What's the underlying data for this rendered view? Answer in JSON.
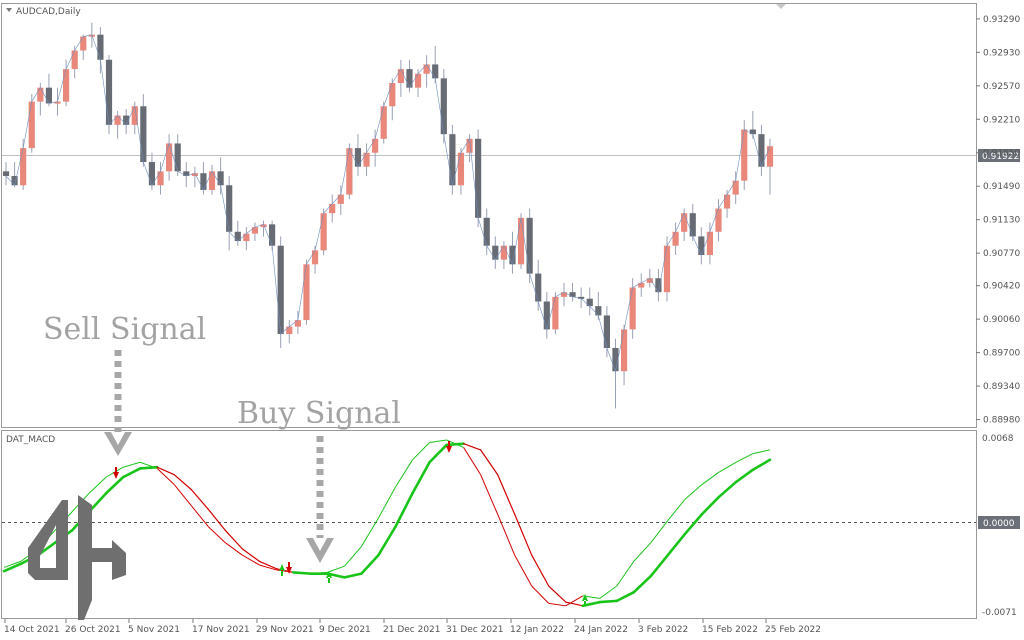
{
  "chart_window": {
    "title": "AUDCAD,Daily",
    "current_price": "0.91922",
    "price_axis_labels": [
      "0.93290",
      "0.92930",
      "0.92570",
      "0.92210",
      "0.91850",
      "0.91490",
      "0.91130",
      "0.90770",
      "0.90420",
      "0.90060",
      "0.89700",
      "0.89340",
      "0.88980"
    ],
    "date_labels": [
      "14 Oct 2021",
      "26 Oct 2021",
      "5 Nov 2021",
      "17 Nov 2021",
      "29 Nov 2021",
      "9 Dec 2021",
      "21 Dec 2021",
      "31 Dec 2021",
      "12 Jan 2022",
      "24 Jan 2022",
      "3 Feb 2022",
      "15 Feb 2022",
      "25 Feb 2022"
    ]
  },
  "indicator": {
    "name": "DAT_MACD",
    "axis_labels": {
      "top": "0.0068",
      "zero": "0.0000",
      "bottom": "-0.0071"
    }
  },
  "annotations": {
    "sell": "Sell Signal",
    "buy": "Buy Signal"
  },
  "colors": {
    "bull": "#e8877a",
    "bear": "#676b73",
    "macd_signal_up": "#19c419",
    "macd_signal_down": "#d40000",
    "arrow_gray": "#a7a7a7"
  },
  "chart_data": [
    {
      "type": "candlestick",
      "title": "AUDCAD,Daily",
      "ylim": [
        0.889,
        0.9345
      ],
      "series": [
        {
          "name": "AUDCAD",
          "ohlc": [
            [
              0.9165,
              0.9175,
              0.915,
              0.916
            ],
            [
              0.916,
              0.9175,
              0.9148,
              0.915
            ],
            [
              0.915,
              0.92,
              0.9145,
              0.919
            ],
            [
              0.919,
              0.9248,
              0.9185,
              0.924
            ],
            [
              0.924,
              0.926,
              0.9225,
              0.9255
            ],
            [
              0.9255,
              0.927,
              0.9235,
              0.9238
            ],
            [
              0.9238,
              0.9255,
              0.9225,
              0.924
            ],
            [
              0.924,
              0.9285,
              0.9235,
              0.9275
            ],
            [
              0.9275,
              0.93,
              0.9265,
              0.9295
            ],
            [
              0.9295,
              0.9312,
              0.9285,
              0.931
            ],
            [
              0.931,
              0.9325,
              0.9298,
              0.9312
            ],
            [
              0.9312,
              0.932,
              0.927,
              0.9285
            ],
            [
              0.9285,
              0.929,
              0.9205,
              0.9215
            ],
            [
              0.9215,
              0.923,
              0.92,
              0.9225
            ],
            [
              0.9225,
              0.9232,
              0.9205,
              0.9215
            ],
            [
              0.9215,
              0.924,
              0.9205,
              0.9235
            ],
            [
              0.9235,
              0.9248,
              0.917,
              0.9175
            ],
            [
              0.9175,
              0.9185,
              0.9145,
              0.915
            ],
            [
              0.915,
              0.9175,
              0.914,
              0.9165
            ],
            [
              0.9165,
              0.9205,
              0.9155,
              0.9195
            ],
            [
              0.9195,
              0.9205,
              0.916,
              0.9165
            ],
            [
              0.9165,
              0.9175,
              0.9148,
              0.916
            ],
            [
              0.916,
              0.917,
              0.9148,
              0.9163
            ],
            [
              0.9163,
              0.9175,
              0.914,
              0.9145
            ],
            [
              0.9145,
              0.9172,
              0.914,
              0.9165
            ],
            [
              0.9165,
              0.918,
              0.914,
              0.915
            ],
            [
              0.915,
              0.916,
              0.908,
              0.91
            ],
            [
              0.91,
              0.9112,
              0.9085,
              0.909
            ],
            [
              0.909,
              0.9105,
              0.908,
              0.9098
            ],
            [
              0.9098,
              0.911,
              0.909,
              0.9105
            ],
            [
              0.9105,
              0.9112,
              0.9095,
              0.9108
            ],
            [
              0.9108,
              0.9112,
              0.908,
              0.9085
            ],
            [
              0.9085,
              0.9095,
              0.8975,
              0.899
            ],
            [
              0.899,
              0.9005,
              0.898,
              0.8998
            ],
            [
              0.8998,
              0.9015,
              0.899,
              0.9005
            ],
            [
              0.9005,
              0.907,
              0.9,
              0.9065
            ],
            [
              0.9065,
              0.9085,
              0.9055,
              0.908
            ],
            [
              0.908,
              0.9125,
              0.9075,
              0.912
            ],
            [
              0.912,
              0.914,
              0.911,
              0.913
            ],
            [
              0.913,
              0.915,
              0.9118,
              0.914
            ],
            [
              0.914,
              0.9195,
              0.9135,
              0.919
            ],
            [
              0.919,
              0.9205,
              0.916,
              0.917
            ],
            [
              0.917,
              0.9195,
              0.916,
              0.9185
            ],
            [
              0.9185,
              0.921,
              0.917,
              0.92
            ],
            [
              0.92,
              0.924,
              0.9195,
              0.9235
            ],
            [
              0.9235,
              0.9265,
              0.922,
              0.926
            ],
            [
              0.926,
              0.9285,
              0.9245,
              0.9275
            ],
            [
              0.9275,
              0.9285,
              0.925,
              0.9255
            ],
            [
              0.9255,
              0.9275,
              0.9245,
              0.927
            ],
            [
              0.927,
              0.929,
              0.9255,
              0.928
            ],
            [
              0.928,
              0.93,
              0.926,
              0.9265
            ],
            [
              0.9265,
              0.9275,
              0.9195,
              0.9205
            ],
            [
              0.9205,
              0.9215,
              0.914,
              0.915
            ],
            [
              0.915,
              0.919,
              0.914,
              0.9185
            ],
            [
              0.9185,
              0.9205,
              0.9175,
              0.92
            ],
            [
              0.92,
              0.921,
              0.9105,
              0.9115
            ],
            [
              0.9115,
              0.9125,
              0.9075,
              0.9085
            ],
            [
              0.9085,
              0.9095,
              0.906,
              0.907
            ],
            [
              0.907,
              0.909,
              0.906,
              0.9085
            ],
            [
              0.9085,
              0.91,
              0.9055,
              0.9065
            ],
            [
              0.9065,
              0.912,
              0.906,
              0.9115
            ],
            [
              0.9115,
              0.9125,
              0.9045,
              0.9055
            ],
            [
              0.9055,
              0.907,
              0.9015,
              0.9025
            ],
            [
              0.9025,
              0.9035,
              0.8985,
              0.8995
            ],
            [
              0.8995,
              0.9035,
              0.899,
              0.903
            ],
            [
              0.903,
              0.9045,
              0.902,
              0.9035
            ],
            [
              0.9035,
              0.9045,
              0.9025,
              0.903
            ],
            [
              0.903,
              0.904,
              0.9018,
              0.9028
            ],
            [
              0.9028,
              0.904,
              0.901,
              0.902
            ],
            [
              0.902,
              0.9035,
              0.9005,
              0.901
            ],
            [
              0.901,
              0.902,
              0.8965,
              0.8975
            ],
            [
              0.8975,
              0.8985,
              0.891,
              0.895
            ],
            [
              0.895,
              0.9,
              0.8935,
              0.8995
            ],
            [
              0.8995,
              0.905,
              0.8985,
              0.904
            ],
            [
              0.904,
              0.9055,
              0.903,
              0.9045
            ],
            [
              0.9045,
              0.906,
              0.904,
              0.905
            ],
            [
              0.905,
              0.906,
              0.9025,
              0.9035
            ],
            [
              0.9035,
              0.9095,
              0.9025,
              0.9085
            ],
            [
              0.9085,
              0.911,
              0.9075,
              0.91
            ],
            [
              0.91,
              0.9125,
              0.909,
              0.912
            ],
            [
              0.912,
              0.913,
              0.909,
              0.9095
            ],
            [
              0.9095,
              0.9105,
              0.9065,
              0.9075
            ],
            [
              0.9075,
              0.911,
              0.9065,
              0.91
            ],
            [
              0.91,
              0.9135,
              0.909,
              0.9125
            ],
            [
              0.9125,
              0.9145,
              0.9115,
              0.914
            ],
            [
              0.914,
              0.9165,
              0.913,
              0.9155
            ],
            [
              0.9155,
              0.922,
              0.9145,
              0.921
            ],
            [
              0.921,
              0.923,
              0.92,
              0.9205
            ],
            [
              0.9205,
              0.9215,
              0.916,
              0.917
            ],
            [
              0.917,
              0.92,
              0.914,
              0.9192
            ]
          ]
        }
      ],
      "xlabels": [
        "14 Oct 2021",
        "26 Oct 2021",
        "5 Nov 2021",
        "17 Nov 2021",
        "29 Nov 2021",
        "9 Dec 2021",
        "21 Dec 2021",
        "31 Dec 2021",
        "12 Jan 2022",
        "24 Jan 2022",
        "3 Feb 2022",
        "15 Feb 2022",
        "25 Feb 2022"
      ]
    },
    {
      "type": "line",
      "title": "DAT_MACD",
      "ylim": [
        -0.0071,
        0.0068
      ],
      "series": [
        {
          "values": [
            -0.0035,
            -0.003,
            -0.002,
            -0.0005,
            0.001,
            0.0025,
            0.0038,
            0.0046,
            0.005,
            0.0045,
            0.0032,
            0.0015,
            -0.0002,
            -0.0015,
            -0.0025,
            -0.0033,
            -0.0037,
            -0.0039,
            -0.004,
            -0.0039,
            -0.0034,
            -0.0018,
            0.0005,
            0.003,
            0.0052,
            0.0066,
            0.0068,
            0.0062,
            0.004,
            0.0008,
            -0.0025,
            -0.005,
            -0.0064,
            -0.0066,
            -0.0058,
            -0.006,
            -0.005,
            -0.003,
            -0.0015,
            0.0003,
            0.002,
            0.0032,
            0.0042,
            0.005,
            0.0057,
            0.006
          ]
        },
        {
          "values": [
            -0.0038,
            -0.0032,
            -0.0025,
            -0.0015,
            -0.0005,
            0.001,
            0.0025,
            0.0038,
            0.0045,
            0.0046,
            0.004,
            0.0028,
            0.0012,
            -0.0005,
            -0.002,
            -0.003,
            -0.0036,
            -0.0039,
            -0.004,
            -0.004,
            -0.0043,
            -0.004,
            -0.0025,
            -0.0002,
            0.0025,
            0.005,
            0.0064,
            0.0065,
            0.006,
            0.004,
            0.0008,
            -0.0025,
            -0.005,
            -0.0063,
            -0.0066,
            -0.0063,
            -0.0062,
            -0.0055,
            -0.0042,
            -0.0025,
            -0.0008,
            0.0008,
            0.0022,
            0.0034,
            0.0044,
            0.0052
          ]
        }
      ]
    }
  ]
}
